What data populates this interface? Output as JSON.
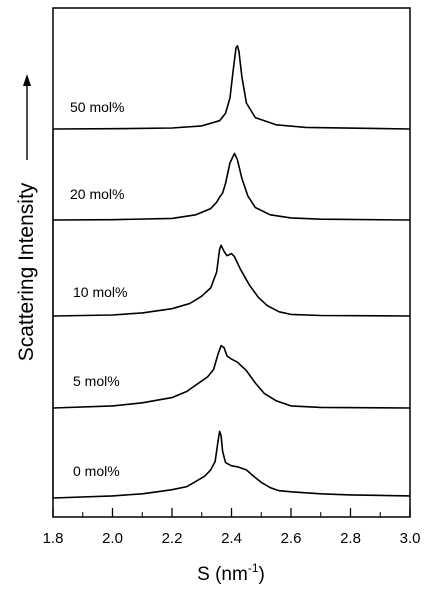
{
  "chart_data": {
    "type": "line",
    "title": "",
    "xlabel": "S (nm",
    "xlabel_sup": "-1",
    "xlabel_close": ")",
    "ylabel": "Scattering Intensity",
    "xlim": [
      1.8,
      3.0
    ],
    "x_ticks": [
      "1.8",
      "2.0",
      "2.2",
      "2.4",
      "2.6",
      "2.8",
      "3.0"
    ],
    "y_ticks_numbered": false,
    "stacked_offset": true,
    "grid": false,
    "legend": "none; each curve labeled inline at left",
    "series": [
      {
        "name": "50 mol%",
        "points": [
          [
            1.8,
            0.0
          ],
          [
            2.0,
            0.003
          ],
          [
            2.2,
            0.01
          ],
          [
            2.3,
            0.03
          ],
          [
            2.36,
            0.08
          ],
          [
            2.38,
            0.15
          ],
          [
            2.395,
            0.3
          ],
          [
            2.405,
            0.55
          ],
          [
            2.415,
            0.78
          ],
          [
            2.42,
            0.8
          ],
          [
            2.425,
            0.75
          ],
          [
            2.435,
            0.5
          ],
          [
            2.45,
            0.25
          ],
          [
            2.48,
            0.11
          ],
          [
            2.55,
            0.04
          ],
          [
            2.65,
            0.015
          ],
          [
            3.0,
            0.0
          ]
        ]
      },
      {
        "name": "20 mol%",
        "points": [
          [
            1.8,
            0.0
          ],
          [
            2.0,
            0.003
          ],
          [
            2.2,
            0.015
          ],
          [
            2.28,
            0.05
          ],
          [
            2.33,
            0.11
          ],
          [
            2.35,
            0.17
          ],
          [
            2.36,
            0.22
          ],
          [
            2.37,
            0.26
          ],
          [
            2.38,
            0.35
          ],
          [
            2.395,
            0.55
          ],
          [
            2.41,
            0.64
          ],
          [
            2.42,
            0.58
          ],
          [
            2.435,
            0.4
          ],
          [
            2.455,
            0.23
          ],
          [
            2.48,
            0.12
          ],
          [
            2.53,
            0.05
          ],
          [
            2.6,
            0.02
          ],
          [
            2.7,
            0.008
          ],
          [
            3.0,
            0.0
          ]
        ]
      },
      {
        "name": "10 mol%",
        "points": [
          [
            1.8,
            0.0
          ],
          [
            2.0,
            0.01
          ],
          [
            2.1,
            0.03
          ],
          [
            2.2,
            0.07
          ],
          [
            2.26,
            0.12
          ],
          [
            2.3,
            0.19
          ],
          [
            2.33,
            0.27
          ],
          [
            2.35,
            0.42
          ],
          [
            2.36,
            0.64
          ],
          [
            2.365,
            0.68
          ],
          [
            2.375,
            0.62
          ],
          [
            2.385,
            0.58
          ],
          [
            2.4,
            0.6
          ],
          [
            2.41,
            0.57
          ],
          [
            2.43,
            0.45
          ],
          [
            2.46,
            0.3
          ],
          [
            2.49,
            0.18
          ],
          [
            2.52,
            0.1
          ],
          [
            2.56,
            0.04
          ],
          [
            2.6,
            0.015
          ],
          [
            2.7,
            0.005
          ],
          [
            3.0,
            0.0
          ]
        ]
      },
      {
        "name": "5 mol%",
        "points": [
          [
            1.8,
            0.0
          ],
          [
            2.0,
            0.02
          ],
          [
            2.1,
            0.05
          ],
          [
            2.2,
            0.1
          ],
          [
            2.25,
            0.16
          ],
          [
            2.29,
            0.24
          ],
          [
            2.32,
            0.3
          ],
          [
            2.34,
            0.37
          ],
          [
            2.355,
            0.52
          ],
          [
            2.365,
            0.6
          ],
          [
            2.375,
            0.58
          ],
          [
            2.385,
            0.5
          ],
          [
            2.4,
            0.47
          ],
          [
            2.42,
            0.44
          ],
          [
            2.45,
            0.36
          ],
          [
            2.48,
            0.24
          ],
          [
            2.51,
            0.14
          ],
          [
            2.55,
            0.07
          ],
          [
            2.6,
            0.02
          ],
          [
            2.7,
            0.006
          ],
          [
            3.0,
            0.0
          ]
        ]
      },
      {
        "name": "0 mol%",
        "points": [
          [
            1.8,
            0.0
          ],
          [
            2.0,
            0.02
          ],
          [
            2.1,
            0.04
          ],
          [
            2.15,
            0.06
          ],
          [
            2.2,
            0.08
          ],
          [
            2.25,
            0.11
          ],
          [
            2.28,
            0.16
          ],
          [
            2.31,
            0.21
          ],
          [
            2.33,
            0.27
          ],
          [
            2.345,
            0.35
          ],
          [
            2.355,
            0.55
          ],
          [
            2.36,
            0.64
          ],
          [
            2.365,
            0.6
          ],
          [
            2.37,
            0.45
          ],
          [
            2.38,
            0.34
          ],
          [
            2.4,
            0.31
          ],
          [
            2.42,
            0.3
          ],
          [
            2.45,
            0.27
          ],
          [
            2.47,
            0.22
          ],
          [
            2.5,
            0.15
          ],
          [
            2.53,
            0.1
          ],
          [
            2.56,
            0.07
          ],
          [
            2.6,
            0.06
          ],
          [
            2.7,
            0.04
          ],
          [
            2.8,
            0.03
          ],
          [
            3.0,
            0.02
          ]
        ]
      }
    ],
    "colors": {
      "line": "#000000",
      "frame": "#000000",
      "background": "#ffffff"
    }
  }
}
